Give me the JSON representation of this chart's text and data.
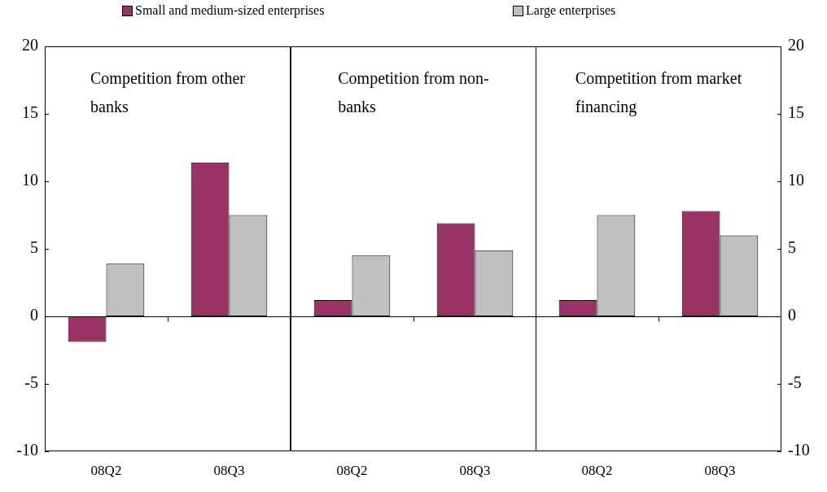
{
  "chart_data": [
    {
      "type": "bar",
      "title": "Competition from other banks",
      "categories": [
        "08Q2",
        "08Q3"
      ],
      "legend": "top",
      "ylim": [
        -10,
        20
      ],
      "yticks": [
        -10,
        -5,
        0,
        5,
        10,
        15,
        20
      ],
      "series": [
        {
          "name": "Small and medium-sized enterprises",
          "color": "#993366",
          "values": [
            -1.9,
            11.4
          ]
        },
        {
          "name": "Large enterprises",
          "color": "#c0c0c0",
          "values": [
            3.9,
            7.5
          ]
        }
      ]
    },
    {
      "type": "bar",
      "title": "Competition from non-banks",
      "categories": [
        "08Q2",
        "08Q3"
      ],
      "ylim": [
        -10,
        20
      ],
      "yticks": [
        -10,
        -5,
        0,
        5,
        10,
        15,
        20
      ],
      "tick_labels": "x",
      "series": [
        {
          "color": "#993366",
          "values": [
            1.2,
            6.9
          ]
        },
        {
          "color": "#c0c0c0",
          "values": [
            4.5,
            4.9
          ]
        }
      ]
    },
    {
      "type": "bar",
      "title": "Competition from market financing",
      "categories": [
        "08Q2",
        "08Q3"
      ],
      "ylim": [
        -10,
        20
      ],
      "yticks": [
        -10,
        -5,
        0,
        5,
        10,
        15,
        20
      ],
      "series": [
        {
          "color": "#993366",
          "values": [
            1.2,
            7.8
          ]
        },
        {
          "color": "#c0c0c0",
          "values": [
            7.5,
            6.0
          ]
        }
      ]
    }
  ]
}
